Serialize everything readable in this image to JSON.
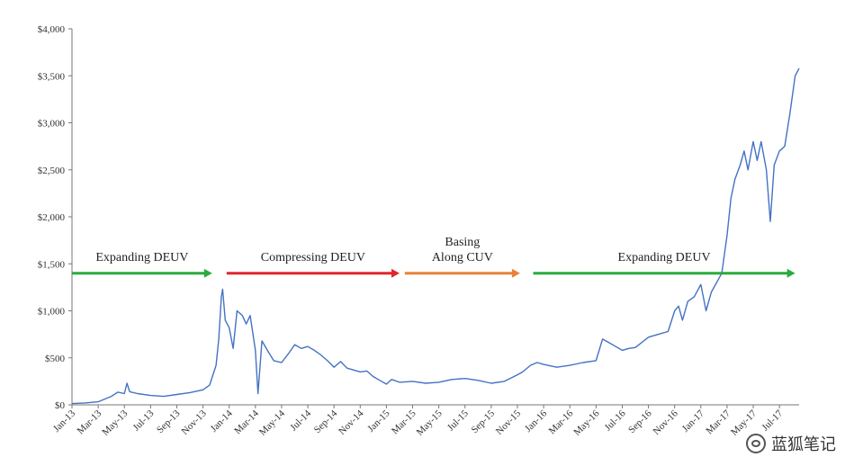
{
  "chart_data": {
    "type": "line",
    "y_ticks": [
      "$0",
      "$500",
      "$1,000",
      "$1,500",
      "$2,000",
      "$2,500",
      "$3,000",
      "$3,500",
      "$4,000"
    ],
    "ylim": [
      0,
      4000
    ],
    "x_ticks": [
      "Jan-13",
      "Mar-13",
      "May-13",
      "Jul-13",
      "Sep-13",
      "Nov-13",
      "Jan-14",
      "Mar-14",
      "May-14",
      "Jul-14",
      "Sep-14",
      "Nov-14",
      "Jan-15",
      "Mar-15",
      "May-15",
      "Jul-15",
      "Sep-15",
      "Nov-15",
      "Jan-16",
      "Mar-16",
      "May-16",
      "Jul-16",
      "Sep-16",
      "Nov-16",
      "Jan-17",
      "Mar-17",
      "May-17",
      "Jul-17"
    ],
    "x_unit": "month index from Jan-13",
    "xlim": [
      0,
      55.5
    ],
    "series": [
      {
        "color": "#4472c4",
        "points": [
          [
            0,
            13
          ],
          [
            1,
            20
          ],
          [
            2,
            33
          ],
          [
            3,
            90
          ],
          [
            3.5,
            135
          ],
          [
            4,
            120
          ],
          [
            4.2,
            230
          ],
          [
            4.4,
            140
          ],
          [
            5,
            120
          ],
          [
            6,
            100
          ],
          [
            7,
            90
          ],
          [
            8,
            110
          ],
          [
            9,
            130
          ],
          [
            10,
            160
          ],
          [
            10.5,
            210
          ],
          [
            11,
            420
          ],
          [
            11.2,
            700
          ],
          [
            11.4,
            1150
          ],
          [
            11.5,
            1230
          ],
          [
            11.7,
            900
          ],
          [
            12,
            820
          ],
          [
            12.3,
            600
          ],
          [
            12.6,
            1000
          ],
          [
            13,
            950
          ],
          [
            13.3,
            860
          ],
          [
            13.6,
            950
          ],
          [
            14,
            580
          ],
          [
            14.2,
            120
          ],
          [
            14.5,
            680
          ],
          [
            15,
            560
          ],
          [
            15.4,
            470
          ],
          [
            16,
            450
          ],
          [
            16.5,
            540
          ],
          [
            17,
            640
          ],
          [
            17.5,
            600
          ],
          [
            18,
            620
          ],
          [
            18.5,
            580
          ],
          [
            19,
            530
          ],
          [
            19.5,
            470
          ],
          [
            20,
            400
          ],
          [
            20.5,
            460
          ],
          [
            21,
            390
          ],
          [
            21.5,
            370
          ],
          [
            22,
            350
          ],
          [
            22.5,
            360
          ],
          [
            23,
            300
          ],
          [
            23.5,
            260
          ],
          [
            24,
            220
          ],
          [
            24.4,
            270
          ],
          [
            25,
            240
          ],
          [
            26,
            250
          ],
          [
            27,
            230
          ],
          [
            28,
            240
          ],
          [
            29,
            270
          ],
          [
            30,
            280
          ],
          [
            31,
            260
          ],
          [
            32,
            230
          ],
          [
            33,
            250
          ],
          [
            34,
            320
          ],
          [
            34.4,
            350
          ],
          [
            35,
            420
          ],
          [
            35.5,
            450
          ],
          [
            36,
            430
          ],
          [
            37,
            400
          ],
          [
            38,
            420
          ],
          [
            39,
            450
          ],
          [
            40,
            470
          ],
          [
            40.5,
            700
          ],
          [
            41,
            660
          ],
          [
            41.5,
            620
          ],
          [
            42,
            580
          ],
          [
            42.5,
            600
          ],
          [
            43,
            610
          ],
          [
            44,
            720
          ],
          [
            45,
            760
          ],
          [
            45.5,
            780
          ],
          [
            46,
            1000
          ],
          [
            46.3,
            1050
          ],
          [
            46.6,
            900
          ],
          [
            47,
            1100
          ],
          [
            47.5,
            1150
          ],
          [
            48,
            1280
          ],
          [
            48.4,
            1000
          ],
          [
            48.8,
            1200
          ],
          [
            49.2,
            1300
          ],
          [
            49.6,
            1400
          ],
          [
            50,
            1800
          ],
          [
            50.3,
            2200
          ],
          [
            50.6,
            2400
          ],
          [
            51,
            2550
          ],
          [
            51.3,
            2700
          ],
          [
            51.6,
            2500
          ],
          [
            52,
            2800
          ],
          [
            52.3,
            2600
          ],
          [
            52.6,
            2800
          ],
          [
            53,
            2500
          ],
          [
            53.3,
            1950
          ],
          [
            53.6,
            2550
          ],
          [
            54,
            2700
          ],
          [
            54.4,
            2750
          ],
          [
            54.8,
            3100
          ],
          [
            55.2,
            3500
          ],
          [
            55.5,
            3580
          ]
        ]
      }
    ],
    "annotations": [
      {
        "lines": [
          "Expanding DEUV"
        ],
        "color": "#2bab3c",
        "x_start": 0,
        "x_end": 10.7,
        "y": 1400,
        "label_y": 1530
      },
      {
        "lines": [
          "Compressing DEUV"
        ],
        "color": "#e0262c",
        "x_start": 11.8,
        "x_end": 25,
        "y": 1400,
        "label_y": 1530
      },
      {
        "lines": [
          "Basing",
          "Along CUV"
        ],
        "color": "#e9823a",
        "x_start": 25.4,
        "x_end": 34.2,
        "y": 1400,
        "label_y": 1530
      },
      {
        "lines": [
          "Expanding DEUV"
        ],
        "color": "#2bab3c",
        "x_start": 35.2,
        "x_end": 55.2,
        "y": 1400,
        "label_y": 1530
      }
    ]
  },
  "watermark": {
    "text": "蓝狐笔记"
  }
}
